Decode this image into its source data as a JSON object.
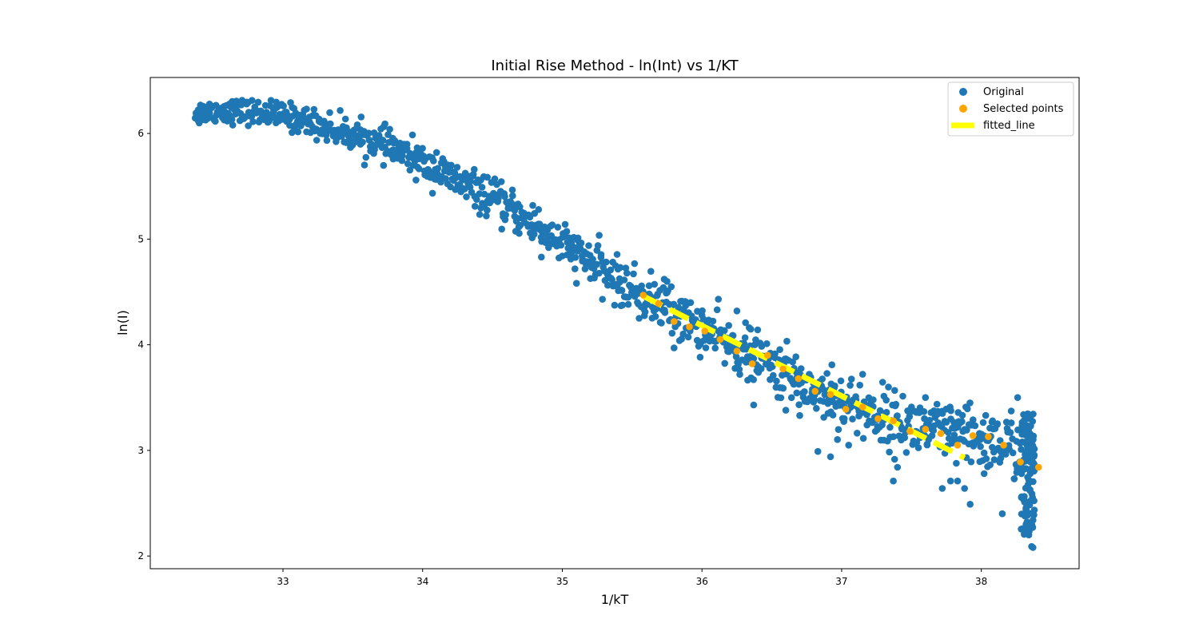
{
  "chart_data": {
    "type": "scatter",
    "title": "Initial Rise Method - ln(Int) vs 1/KT",
    "xlabel": "1/kT",
    "ylabel": "ln(I)",
    "xlim": [
      32.05,
      38.7
    ],
    "ylim": [
      1.88,
      6.53
    ],
    "x_ticks": [
      33,
      34,
      35,
      36,
      37,
      38
    ],
    "y_ticks": [
      2,
      3,
      4,
      5,
      6
    ],
    "grid": false,
    "legend_position": "top-right",
    "colors": {
      "original": "#1f77b4",
      "selected": "#ffa500",
      "fitted_line": "#ffff00"
    },
    "series": [
      {
        "name": "Original",
        "kind": "scatter",
        "trend": [
          [
            32.37,
            6.2
          ],
          [
            32.6,
            6.22
          ],
          [
            32.8,
            6.2
          ],
          [
            33.0,
            6.17
          ],
          [
            33.2,
            6.11
          ],
          [
            33.4,
            6.02
          ],
          [
            33.6,
            5.95
          ],
          [
            33.8,
            5.85
          ],
          [
            34.0,
            5.72
          ],
          [
            34.2,
            5.58
          ],
          [
            34.4,
            5.45
          ],
          [
            34.6,
            5.3
          ],
          [
            34.8,
            5.13
          ],
          [
            35.0,
            4.95
          ],
          [
            35.2,
            4.78
          ],
          [
            35.4,
            4.6
          ],
          [
            35.6,
            4.45
          ],
          [
            35.8,
            4.3
          ],
          [
            36.0,
            4.15
          ],
          [
            36.2,
            4.0
          ],
          [
            36.4,
            3.87
          ],
          [
            36.6,
            3.72
          ],
          [
            36.8,
            3.58
          ],
          [
            37.0,
            3.46
          ],
          [
            37.2,
            3.36
          ],
          [
            37.4,
            3.27
          ],
          [
            37.6,
            3.2
          ],
          [
            37.8,
            3.15
          ],
          [
            38.0,
            3.1
          ],
          [
            38.2,
            3.05
          ],
          [
            38.38,
            3.0
          ]
        ],
        "outliers": [
          [
            32.4,
            6.1
          ],
          [
            34.1,
            5.82
          ],
          [
            34.83,
            5.28
          ],
          [
            34.85,
            4.83
          ],
          [
            35.42,
            4.37
          ],
          [
            35.55,
            4.25
          ],
          [
            35.73,
            4.62
          ],
          [
            35.75,
            4.6
          ],
          [
            35.78,
            4.55
          ],
          [
            35.8,
            3.97
          ],
          [
            36.25,
            4.32
          ],
          [
            36.37,
            3.43
          ],
          [
            36.6,
            3.38
          ],
          [
            36.7,
            3.33
          ],
          [
            36.83,
            2.99
          ],
          [
            36.92,
            2.94
          ],
          [
            36.93,
            3.81
          ],
          [
            37.05,
            3.05
          ],
          [
            37.15,
            3.72
          ],
          [
            37.4,
            2.84
          ],
          [
            37.37,
            2.71
          ],
          [
            37.6,
            3.5
          ],
          [
            37.72,
            2.64
          ],
          [
            37.78,
            2.71
          ],
          [
            37.83,
            2.71
          ],
          [
            37.88,
            2.64
          ],
          [
            37.92,
            2.49
          ],
          [
            38.02,
            2.78
          ],
          [
            38.08,
            3.28
          ],
          [
            38.15,
            2.4
          ],
          [
            38.26,
            3.5
          ],
          [
            38.32,
            2.3
          ],
          [
            38.34,
            2.2
          ],
          [
            38.36,
            2.09
          ],
          [
            38.37,
            2.08
          ]
        ],
        "tail_cluster": {
          "x_range": [
            38.28,
            38.38
          ],
          "y_range": [
            2.2,
            3.35
          ],
          "count": 90
        },
        "scatter_spread": 0.065,
        "point_count": 1150
      },
      {
        "name": "Selected points",
        "kind": "scatter",
        "x": [
          35.58,
          35.69,
          35.8,
          35.91,
          36.02,
          36.13,
          36.25,
          36.36,
          36.47,
          36.58,
          36.69,
          36.81,
          36.92,
          37.03,
          37.15,
          37.26,
          37.37,
          37.49,
          37.6,
          37.71,
          37.83,
          37.94,
          38.05,
          38.16,
          38.28,
          38.41
        ],
        "y": [
          4.47,
          4.39,
          4.22,
          4.17,
          4.13,
          4.05,
          3.94,
          3.82,
          3.9,
          3.77,
          3.68,
          3.56,
          3.53,
          3.39,
          3.41,
          3.3,
          3.28,
          3.18,
          3.2,
          3.16,
          3.05,
          3.14,
          3.13,
          3.05,
          2.89,
          2.84
        ]
      },
      {
        "name": "fitted_line",
        "kind": "line",
        "x": [
          35.58,
          37.88
        ],
        "y": [
          4.46,
          2.93
        ]
      }
    ]
  }
}
